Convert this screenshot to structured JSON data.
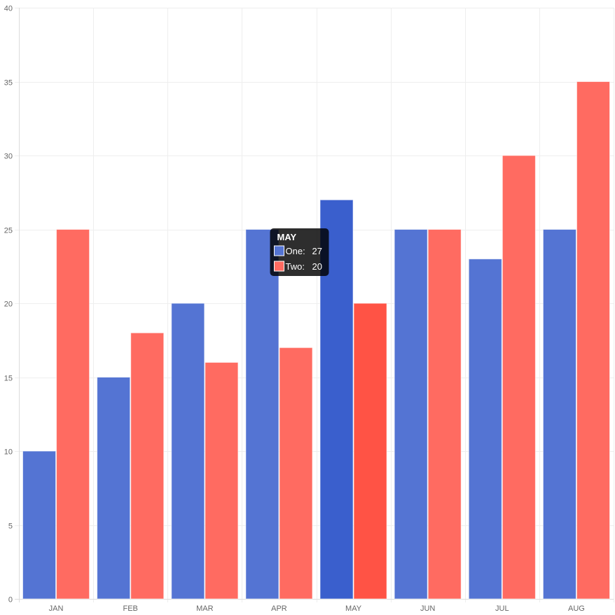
{
  "chart_data": {
    "type": "bar",
    "categories": [
      "JAN",
      "FEB",
      "MAR",
      "APR",
      "MAY",
      "JUN",
      "JUL",
      "AUG"
    ],
    "series": [
      {
        "name": "One",
        "values": [
          10,
          15,
          20,
          25,
          27,
          25,
          23,
          25
        ],
        "color": "#5474d3",
        "highlight_color": "#3a5fcd"
      },
      {
        "name": "Two",
        "values": [
          25,
          18,
          16,
          17,
          20,
          25,
          30,
          35
        ],
        "color": "#ff6b61",
        "highlight_color": "#ff5345"
      }
    ],
    "ylim": [
      0,
      40
    ],
    "yticks": [
      0,
      5,
      10,
      15,
      20,
      25,
      30,
      35,
      40
    ],
    "grid": true,
    "legend": "none",
    "tooltip": {
      "category": "MAY",
      "rows": [
        {
          "label": "One:",
          "value": "27"
        },
        {
          "label": "Two:",
          "value": "20"
        }
      ]
    }
  }
}
